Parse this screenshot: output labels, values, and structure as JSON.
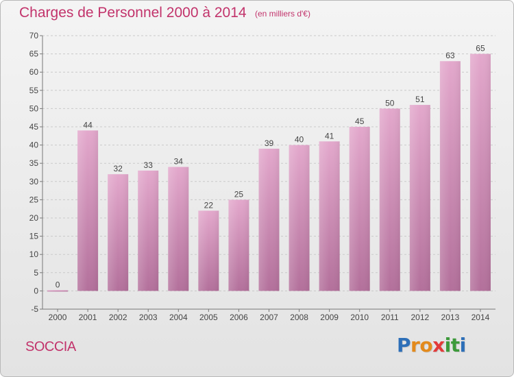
{
  "header": {
    "title": "Charges de Personnel 2000 à 2014",
    "unit": "(en milliers d'€)"
  },
  "footer": {
    "commune": "SOCCIA",
    "brand": "Proxiti",
    "brand_letters": [
      "P",
      "r",
      "o",
      "x",
      "i",
      "t",
      "i"
    ]
  },
  "colors": {
    "bar_top": "#e3a8cc",
    "bar_bottom": "#b3709b",
    "accent": "#c2336b"
  },
  "chart_data": {
    "type": "bar",
    "categories": [
      "2000",
      "2001",
      "2002",
      "2003",
      "2004",
      "2005",
      "2006",
      "2007",
      "2008",
      "2009",
      "2010",
      "2011",
      "2012",
      "2013",
      "2014"
    ],
    "values": [
      0,
      44,
      32,
      33,
      34,
      22,
      25,
      39,
      40,
      41,
      45,
      50,
      51,
      63,
      65
    ],
    "data_labels": [
      "0",
      "44",
      "32",
      "33",
      "34",
      "22",
      "25",
      "39",
      "40",
      "41",
      "45",
      "50",
      "51",
      "63",
      "65"
    ],
    "title": "Charges de Personnel 2000 à 2014",
    "subtitle": "(en milliers d'€)",
    "xlabel": "",
    "ylabel": "",
    "ylim": [
      -5,
      70
    ],
    "yticks": [
      -5,
      0,
      5,
      10,
      15,
      20,
      25,
      30,
      35,
      40,
      45,
      50,
      55,
      60,
      65,
      70
    ],
    "grid": true
  }
}
